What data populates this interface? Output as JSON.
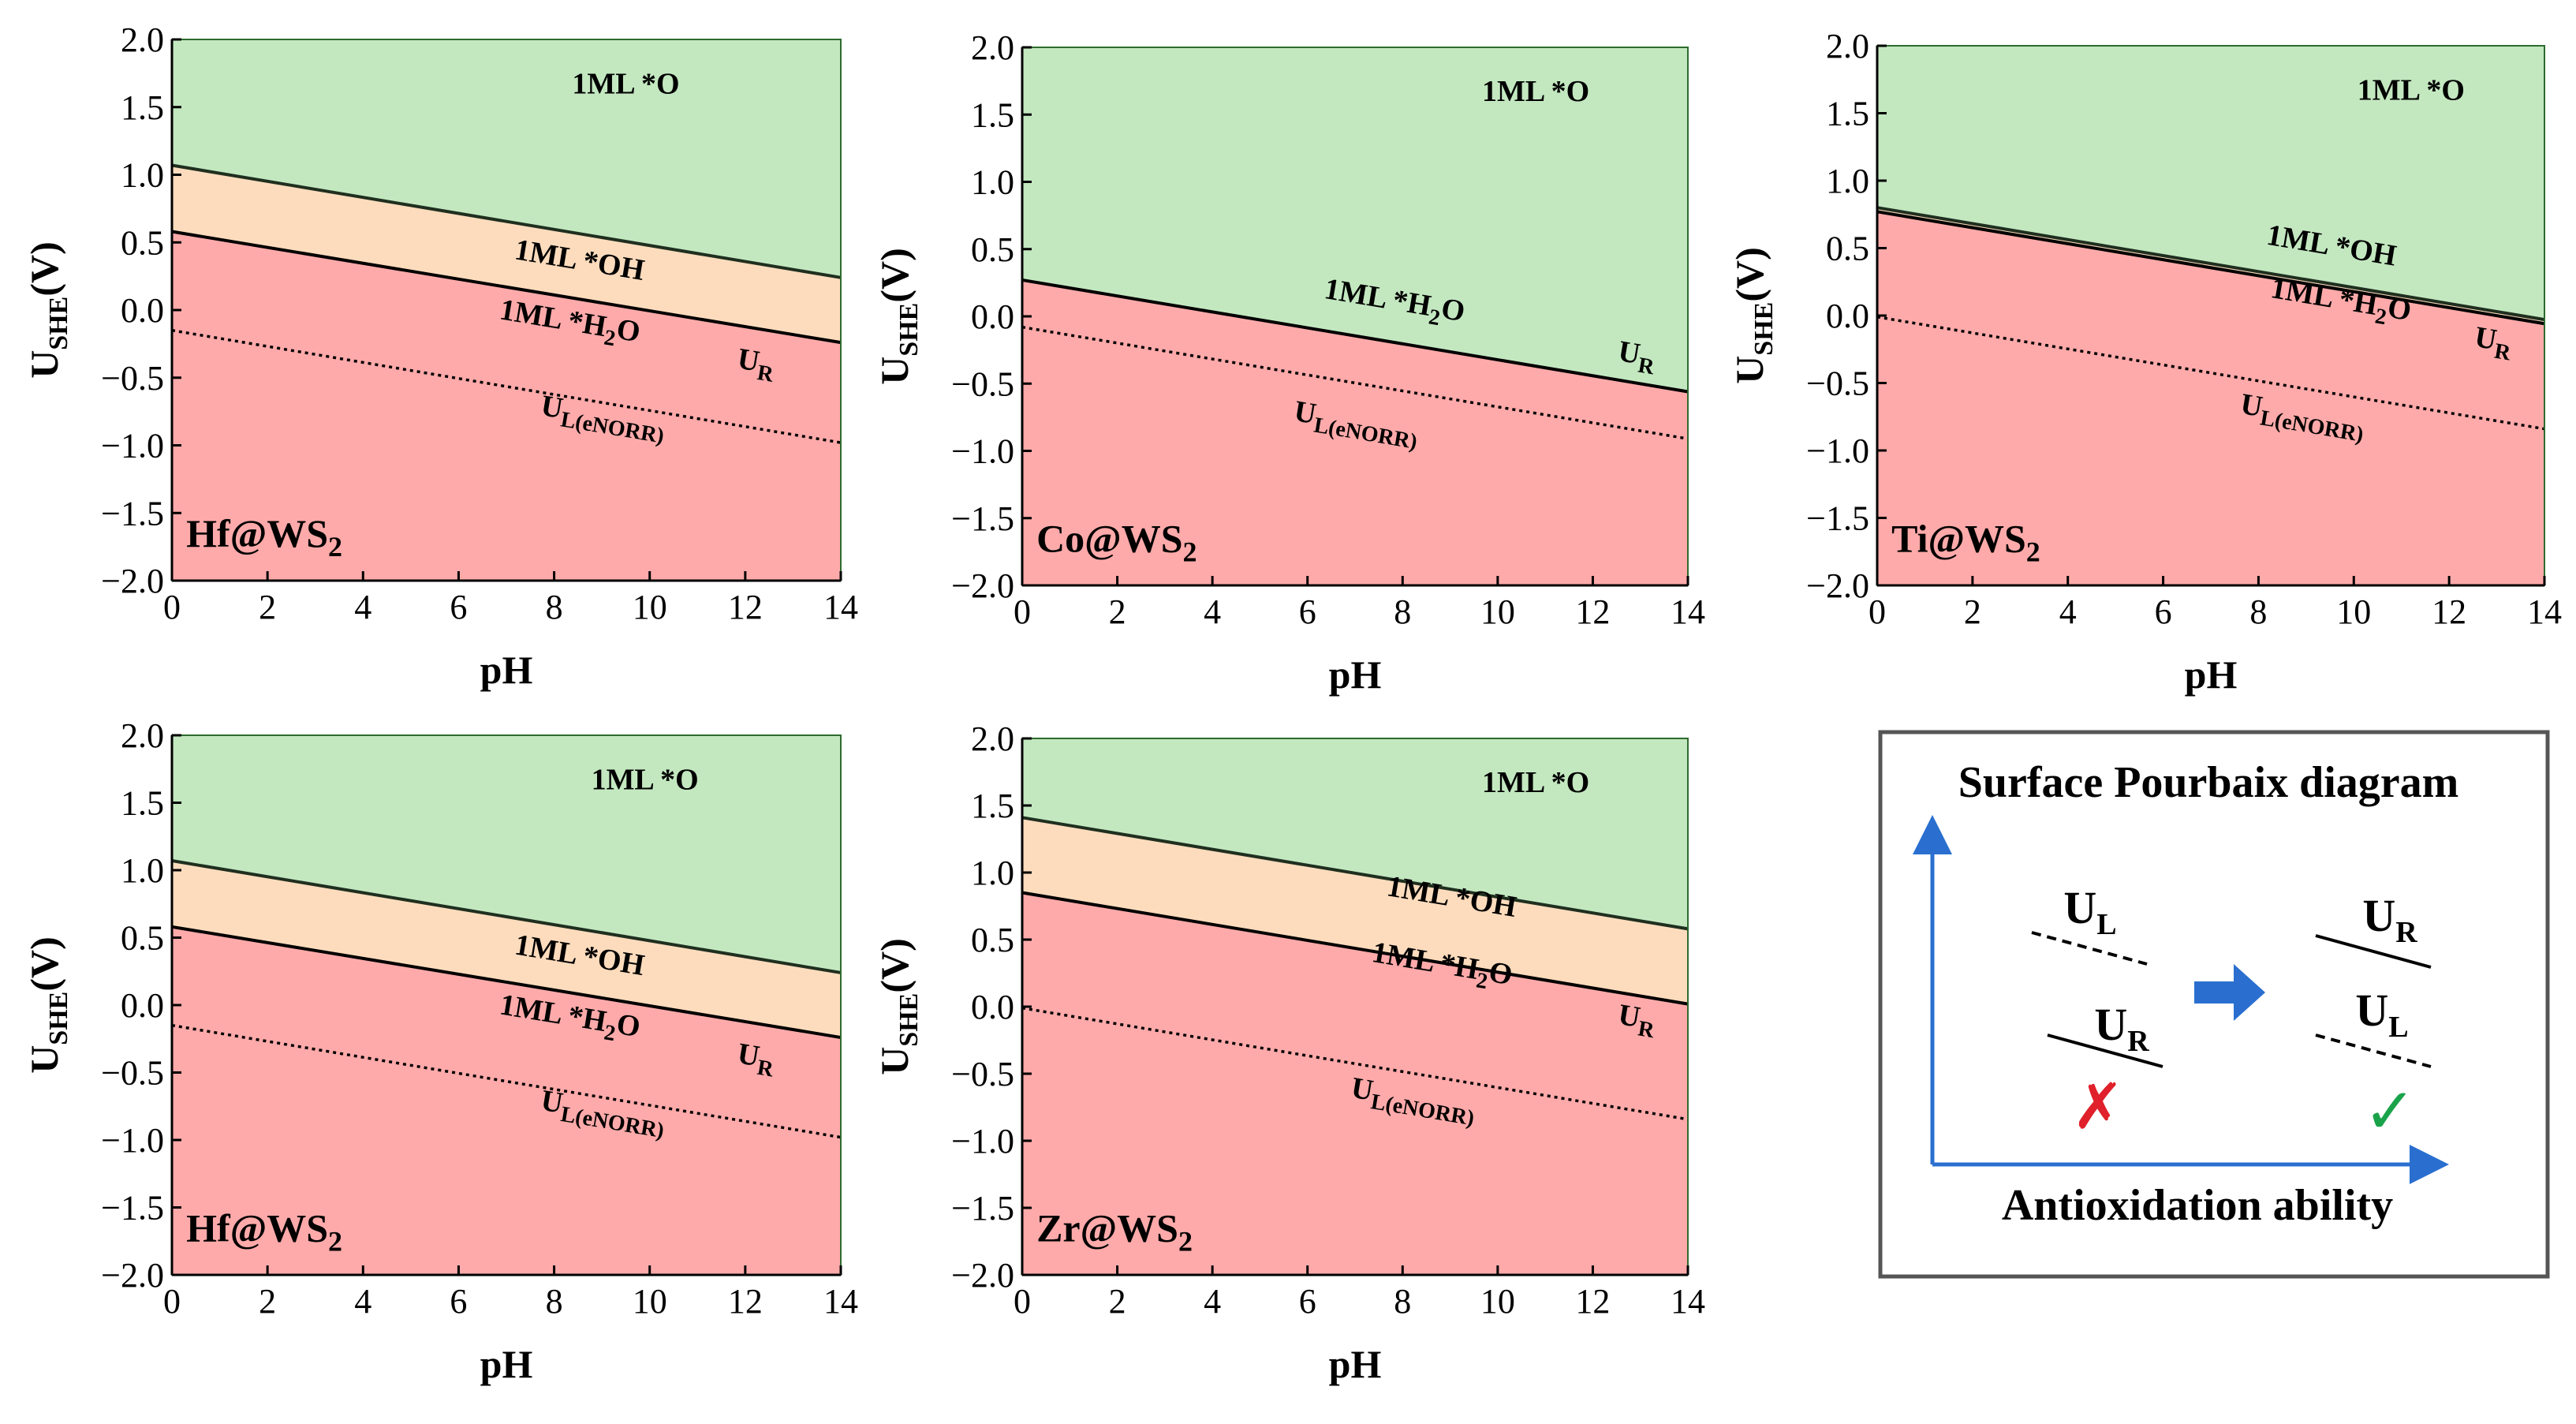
{
  "colors": {
    "oxide": "#c3e8c0",
    "hydroxide": "#fddcbd",
    "water": "#ffaaaa",
    "green_edge": "#1b5e20",
    "arrow": "#2a6fd0",
    "cross": "#e0202a",
    "check": "#1aa34a",
    "frame": "#555555"
  },
  "chart_data": [
    {
      "type": "area",
      "title": "Hf@WS",
      "title_sub": "2",
      "xlabel": "pH",
      "ylabel": "U",
      "ylabel_sub": "SHE",
      "ylabel_unit": "(V)",
      "xlim": [
        0,
        14
      ],
      "ylim": [
        -2.0,
        2.0
      ],
      "xticks": [
        0,
        2,
        4,
        6,
        8,
        10,
        12,
        14
      ],
      "yticks": [
        2.0,
        1.5,
        1.0,
        0.5,
        0.0,
        -0.5,
        -1.0,
        -1.5,
        -2.0
      ],
      "ytick_labels": [
        "2.0",
        "1.5",
        "1.0",
        "0.5",
        "0.0",
        "−0.5",
        "−1.0",
        "−1.5",
        "−2.0"
      ],
      "boundaries": {
        "oh_o": [
          1.07,
          0.24
        ],
        "h2o_oh": [
          0.58,
          -0.24
        ],
        "uL": [
          -0.15,
          -0.98
        ]
      },
      "labels": {
        "region_o": "1ML *O",
        "region_oh": "1ML *OH",
        "region_h2o": "1ML *H",
        "region_h2o_sub": "2",
        "region_h2o_end": "O",
        "ur": "U",
        "ur_sub": "R",
        "ul": "U",
        "ul_sub": "L(eNORR)"
      }
    },
    {
      "type": "area",
      "title": "Co@WS",
      "title_sub": "2",
      "xlabel": "pH",
      "ylabel": "U",
      "ylabel_sub": "SHE",
      "ylabel_unit": "(V)",
      "xlim": [
        0,
        14
      ],
      "ylim": [
        -2.0,
        2.0
      ],
      "xticks": [
        0,
        2,
        4,
        6,
        8,
        10,
        12,
        14
      ],
      "yticks": [
        2.0,
        1.5,
        1.0,
        0.5,
        0.0,
        -0.5,
        -1.0,
        -1.5,
        -2.0
      ],
      "ytick_labels": [
        "2.0",
        "1.5",
        "1.0",
        "0.5",
        "0.0",
        "−0.5",
        "−1.0",
        "−1.5",
        "−2.0"
      ],
      "boundaries": {
        "oh_o": null,
        "h2o_oh": [
          0.27,
          -0.56
        ],
        "uL": [
          -0.08,
          -0.91
        ]
      },
      "labels": {
        "region_o": "1ML *O",
        "region_oh": "",
        "region_h2o": "1ML *H",
        "region_h2o_sub": "2",
        "region_h2o_end": "O",
        "ur": "U",
        "ur_sub": "R",
        "ul": "U",
        "ul_sub": "L(eNORR)"
      }
    },
    {
      "type": "area",
      "title": "Ti@WS",
      "title_sub": "2",
      "xlabel": "pH",
      "ylabel": "U",
      "ylabel_sub": "SHE",
      "ylabel_unit": "(V)",
      "xlim": [
        0,
        14
      ],
      "ylim": [
        -2.0,
        2.0
      ],
      "xticks": [
        0,
        2,
        4,
        6,
        8,
        10,
        12,
        14
      ],
      "yticks": [
        2.0,
        1.5,
        1.0,
        0.5,
        0.0,
        -0.5,
        -1.0,
        -1.5,
        -2.0
      ],
      "ytick_labels": [
        "2.0",
        "1.5",
        "1.0",
        "0.5",
        "0.0",
        "−0.5",
        "−1.0",
        "−1.5",
        "−2.0"
      ],
      "boundaries": {
        "oh_o": [
          0.8,
          -0.03
        ],
        "h2o_oh": [
          0.77,
          -0.06
        ],
        "uL": [
          -0.01,
          -0.84
        ]
      },
      "labels": {
        "region_o": "1ML *O",
        "region_oh": "1ML *OH",
        "region_h2o": "1ML *H",
        "region_h2o_sub": "2",
        "region_h2o_end": "O",
        "ur": "U",
        "ur_sub": "R",
        "ul": "U",
        "ul_sub": "L(eNORR)"
      }
    },
    {
      "type": "area",
      "title": "Hf@WS",
      "title_sub": "2",
      "xlabel": "pH",
      "ylabel": "U",
      "ylabel_sub": "SHE",
      "ylabel_unit": "(V)",
      "xlim": [
        0,
        14
      ],
      "ylim": [
        -2.0,
        2.0
      ],
      "xticks": [
        0,
        2,
        4,
        6,
        8,
        10,
        12,
        14
      ],
      "yticks": [
        2.0,
        1.5,
        1.0,
        0.5,
        0.0,
        -0.5,
        -1.0,
        -1.5,
        -2.0
      ],
      "ytick_labels": [
        "2.0",
        "1.5",
        "1.0",
        "0.5",
        "0.0",
        "−0.5",
        "−1.0",
        "−1.5",
        "−2.0"
      ],
      "boundaries": {
        "oh_o": [
          1.07,
          0.24
        ],
        "h2o_oh": [
          0.58,
          -0.24
        ],
        "uL": [
          -0.15,
          -0.98
        ]
      },
      "labels": {
        "region_o": "1ML *O",
        "region_oh": "1ML *OH",
        "region_h2o": "1ML *H",
        "region_h2o_sub": "2",
        "region_h2o_end": "O",
        "ur": "U",
        "ur_sub": "R",
        "ul": "U",
        "ul_sub": "L(eNORR)"
      }
    },
    {
      "type": "area",
      "title": "Zr@WS",
      "title_sub": "2",
      "xlabel": "pH",
      "ylabel": "U",
      "ylabel_sub": "SHE",
      "ylabel_unit": "(V)",
      "xlim": [
        0,
        14
      ],
      "ylim": [
        -2.0,
        2.0
      ],
      "xticks": [
        0,
        2,
        4,
        6,
        8,
        10,
        12,
        14
      ],
      "yticks": [
        2.0,
        1.5,
        1.0,
        0.5,
        0.0,
        -0.5,
        -1.0,
        -1.5,
        -2.0
      ],
      "ytick_labels": [
        "2.0",
        "1.5",
        "1.0",
        "0.5",
        "0.0",
        "−0.5",
        "−1.0",
        "−1.5",
        "−2.0"
      ],
      "boundaries": {
        "oh_o": [
          1.41,
          0.58
        ],
        "h2o_oh": [
          0.85,
          0.02
        ],
        "uL": [
          -0.01,
          -0.84
        ]
      },
      "labels": {
        "region_o": "1ML *O",
        "region_oh": "1ML *OH",
        "region_h2o": "1ML *H",
        "region_h2o_sub": "2",
        "region_h2o_end": "O",
        "ur": "U",
        "ur_sub": "R",
        "ul": "U",
        "ul_sub": "L(eNORR)"
      }
    }
  ],
  "legend": {
    "title": "Surface Pourbaix diagram",
    "xlabel": "Antioxidation ability",
    "u": "U",
    "sub_l": "L",
    "sub_r": "R",
    "bad_mark": "✗",
    "good_mark": "✓"
  }
}
